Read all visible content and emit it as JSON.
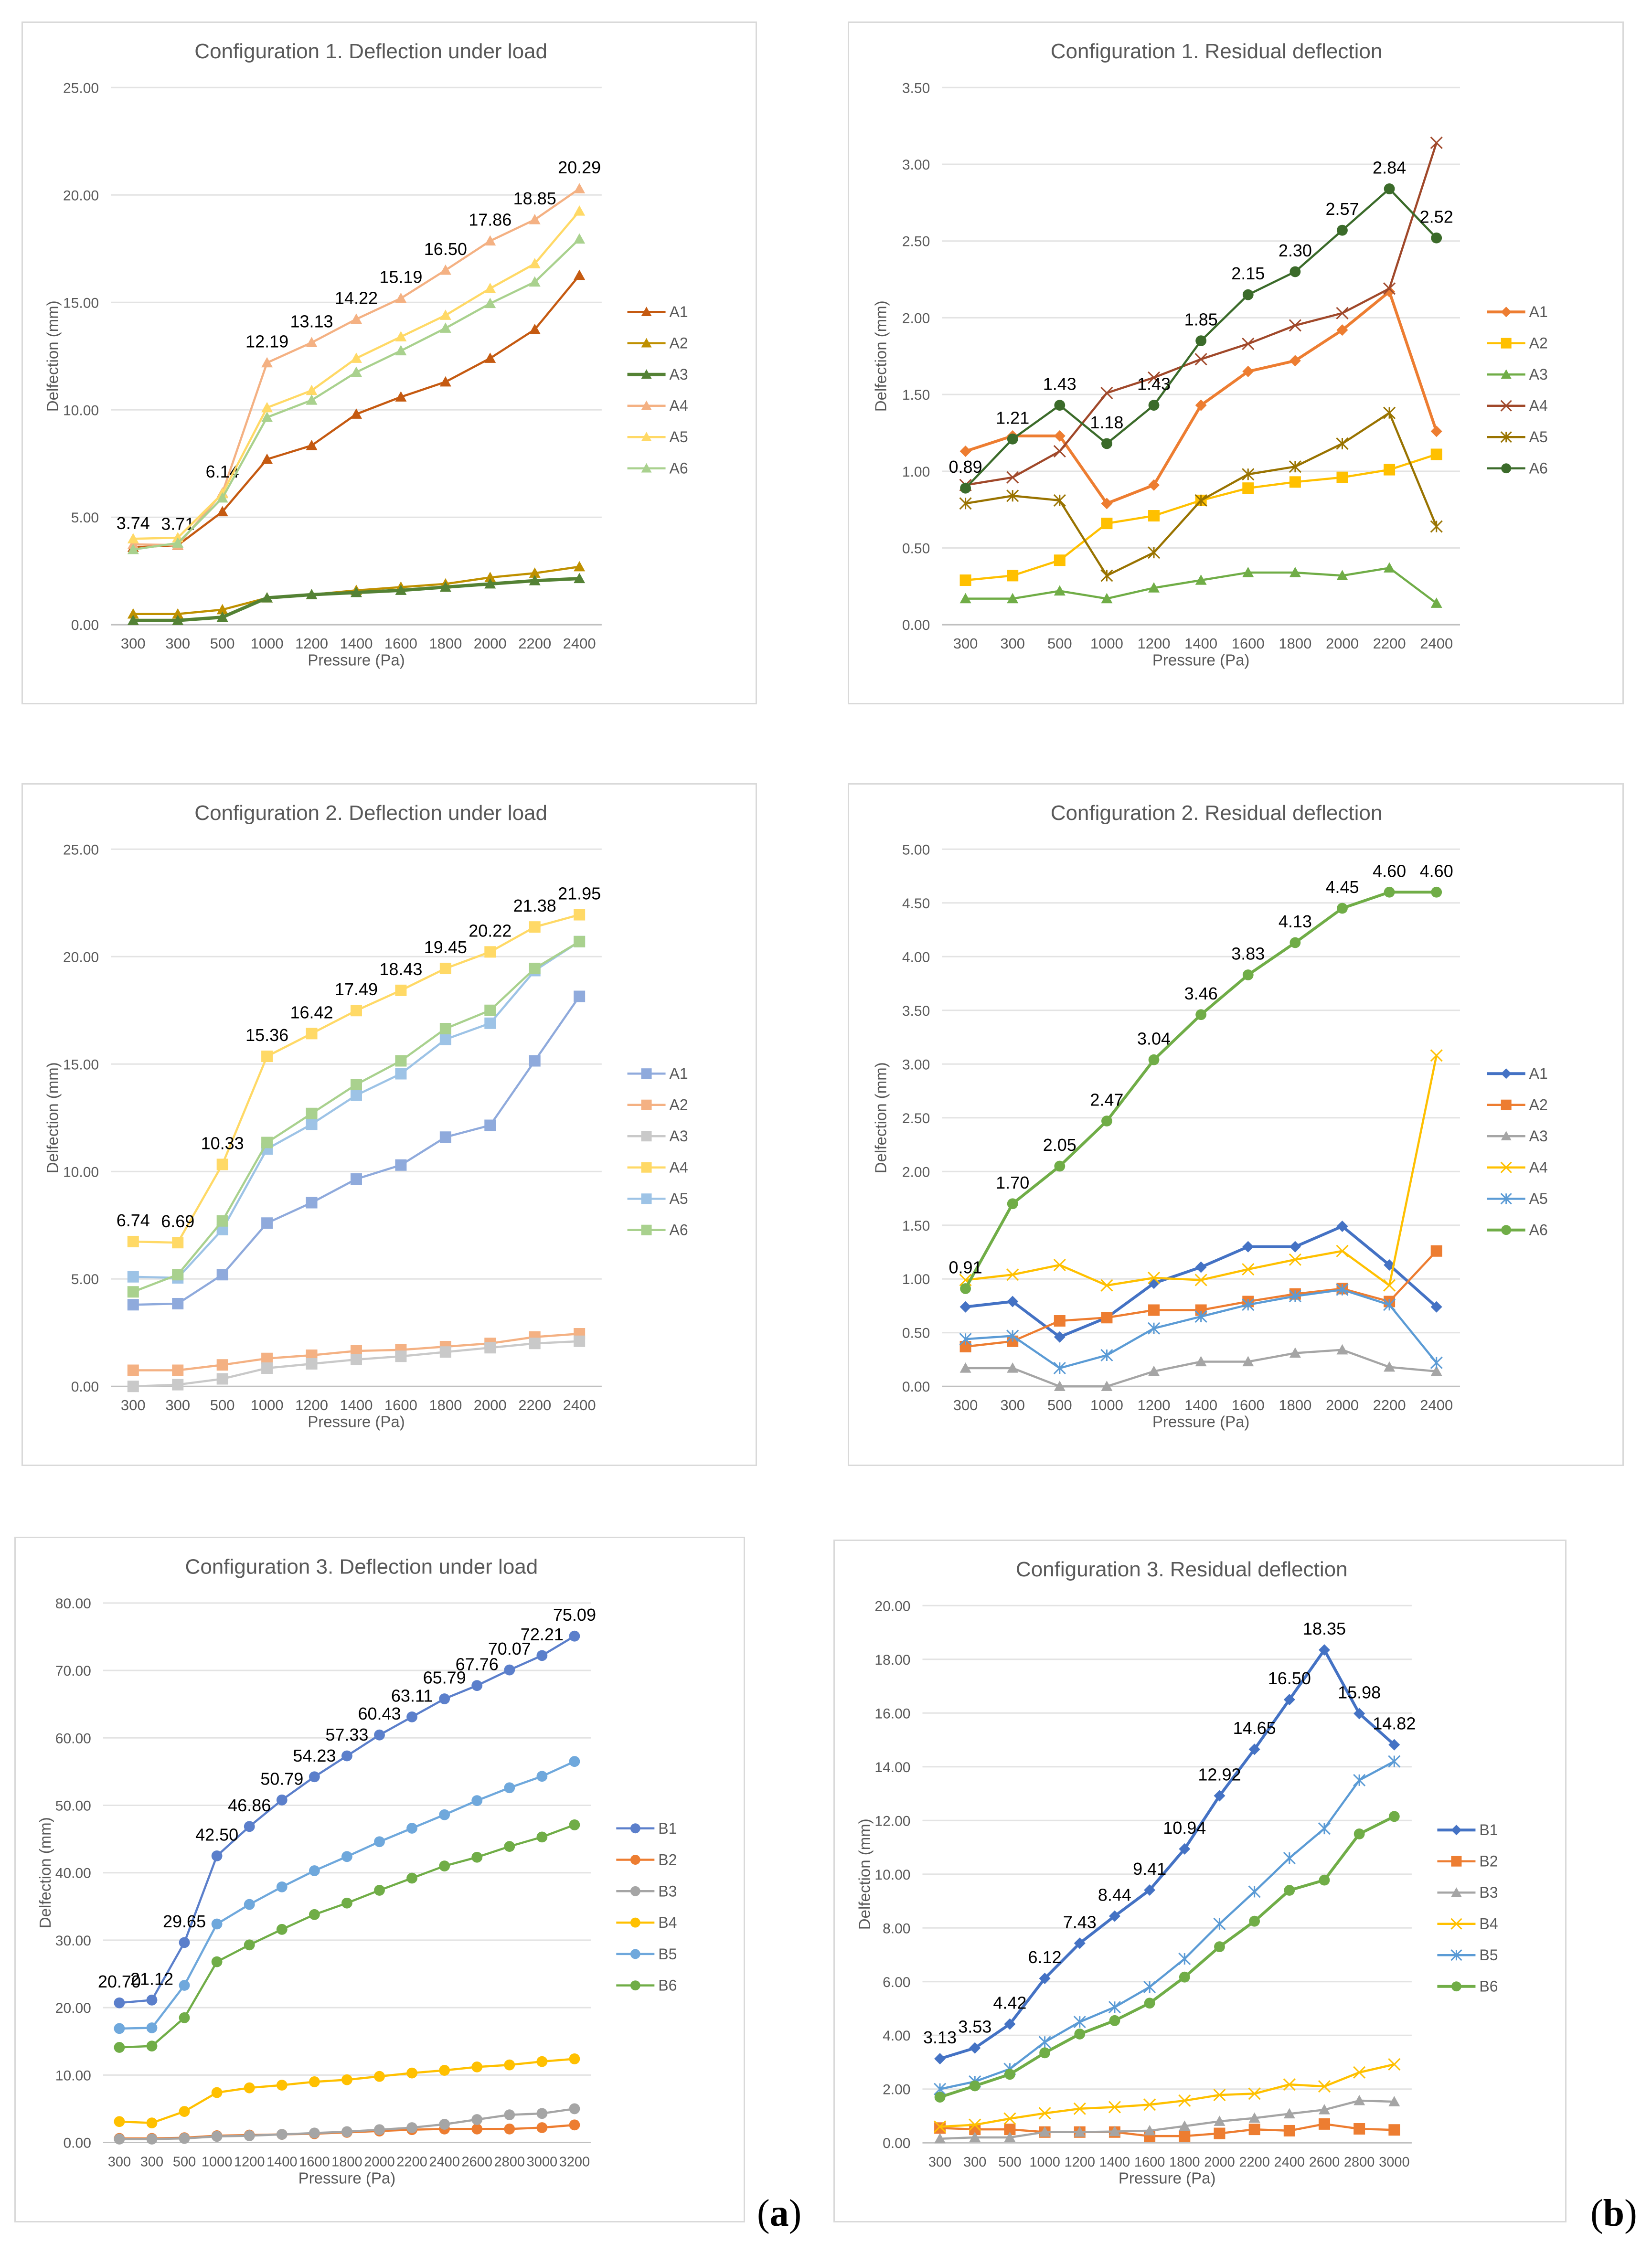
{
  "panel_labels": {
    "a": "a",
    "b": "b"
  },
  "chart_data": [
    {
      "type": "line",
      "title": "Configuration 1. Deflection under load",
      "xlabel": "Pressure (Pa)",
      "ylabel": "Delfection (mm)",
      "ylim": [
        0,
        25
      ],
      "ystep": 5,
      "categories": [
        "300",
        "300",
        "500",
        "1000",
        "1200",
        "1400",
        "1600",
        "1800",
        "2000",
        "2200",
        "2400"
      ],
      "series": [
        {
          "name": "A1",
          "color": "#C55A11",
          "marker": "triangle",
          "values": [
            3.6,
            3.7,
            5.26,
            7.7,
            8.34,
            9.8,
            10.6,
            11.3,
            12.4,
            13.74,
            16.26
          ]
        },
        {
          "name": "A2",
          "color": "#BF9000",
          "marker": "triangle",
          "values": [
            0.5,
            0.5,
            0.7,
            1.25,
            1.4,
            1.6,
            1.75,
            1.9,
            2.2,
            2.4,
            2.7
          ]
        },
        {
          "name": "A3",
          "color": "#548235",
          "marker": "triangle",
          "width": 7,
          "values": [
            0.2,
            0.2,
            0.35,
            1.25,
            1.4,
            1.5,
            1.6,
            1.75,
            1.9,
            2.05,
            2.15
          ]
        },
        {
          "name": "A4",
          "color": "#F4B183",
          "marker": "triangle",
          "labeled": true,
          "values": [
            3.74,
            3.71,
            6.14,
            12.19,
            13.13,
            14.22,
            15.19,
            16.5,
            17.86,
            18.85,
            20.29
          ]
        },
        {
          "name": "A5",
          "color": "#FFD966",
          "marker": "triangle",
          "values": [
            4.0,
            4.05,
            6.1,
            10.1,
            10.9,
            12.4,
            13.4,
            14.4,
            15.65,
            16.8,
            19.25
          ]
        },
        {
          "name": "A6",
          "color": "#A9D18E",
          "marker": "triangle",
          "values": [
            3.5,
            3.8,
            5.9,
            9.65,
            10.45,
            11.75,
            12.75,
            13.8,
            14.95,
            15.95,
            17.95
          ]
        }
      ]
    },
    {
      "type": "line",
      "title": "Configuration 1. Residual deflection",
      "xlabel": "Pressure (Pa)",
      "ylabel": "Delfection (mm)",
      "ylim": [
        0,
        3.5
      ],
      "ystep": 0.5,
      "categories": [
        "300",
        "300",
        "500",
        "1000",
        "1200",
        "1400",
        "1600",
        "1800",
        "2000",
        "2200",
        "2400"
      ],
      "series": [
        {
          "name": "A1",
          "color": "#ED7D31",
          "marker": "diamond",
          "width": 6,
          "values": [
            1.13,
            1.23,
            1.23,
            0.79,
            0.91,
            1.43,
            1.65,
            1.72,
            1.92,
            2.17,
            1.26
          ]
        },
        {
          "name": "A2",
          "color": "#FFC000",
          "marker": "square",
          "values": [
            0.29,
            0.32,
            0.42,
            0.66,
            0.71,
            0.81,
            0.89,
            0.93,
            0.96,
            1.01,
            1.11
          ]
        },
        {
          "name": "A3",
          "color": "#70AD47",
          "marker": "triangle",
          "values": [
            0.17,
            0.17,
            0.22,
            0.17,
            0.24,
            0.29,
            0.34,
            0.34,
            0.32,
            0.37,
            0.14
          ]
        },
        {
          "name": "A4",
          "color": "#A0482A",
          "marker": "x",
          "values": [
            0.91,
            0.96,
            1.13,
            1.51,
            1.61,
            1.73,
            1.83,
            1.95,
            2.03,
            2.19,
            3.14
          ]
        },
        {
          "name": "A5",
          "color": "#997300",
          "marker": "star",
          "values": [
            0.79,
            0.84,
            0.81,
            0.32,
            0.47,
            0.81,
            0.98,
            1.03,
            1.18,
            1.38,
            0.64
          ]
        },
        {
          "name": "A6",
          "color": "#3B6B2A",
          "marker": "circle",
          "labeled": true,
          "values": [
            0.89,
            1.21,
            1.43,
            1.18,
            1.43,
            1.85,
            2.15,
            2.3,
            2.57,
            2.84,
            2.52
          ]
        }
      ]
    },
    {
      "type": "line",
      "title": "Configuration 2. Deflection under load",
      "xlabel": "Pressure (Pa)",
      "ylabel": "Delfection (mm)",
      "ylim": [
        0,
        25
      ],
      "ystep": 5,
      "categories": [
        "300",
        "300",
        "500",
        "1000",
        "1200",
        "1400",
        "1600",
        "1800",
        "2000",
        "2200",
        "2400"
      ],
      "series": [
        {
          "name": "A1",
          "color": "#8FAADC",
          "marker": "square",
          "values": [
            3.8,
            3.85,
            5.2,
            7.6,
            8.55,
            9.65,
            10.3,
            11.6,
            12.15,
            15.15,
            18.15
          ]
        },
        {
          "name": "A2",
          "color": "#F4B183",
          "marker": "square",
          "values": [
            0.75,
            0.75,
            1.0,
            1.3,
            1.45,
            1.65,
            1.7,
            1.85,
            2.0,
            2.3,
            2.45
          ]
        },
        {
          "name": "A3",
          "color": "#C9C9C9",
          "marker": "square",
          "values": [
            0.0,
            0.08,
            0.35,
            0.85,
            1.05,
            1.25,
            1.4,
            1.6,
            1.8,
            2.0,
            2.1
          ]
        },
        {
          "name": "A4",
          "color": "#FFD966",
          "marker": "square",
          "labeled": true,
          "values": [
            6.74,
            6.69,
            10.33,
            15.36,
            16.42,
            17.49,
            18.43,
            19.45,
            20.22,
            21.38,
            21.95
          ]
        },
        {
          "name": "A5",
          "color": "#9DC3E6",
          "marker": "square",
          "values": [
            5.1,
            5.05,
            7.3,
            11.05,
            12.2,
            13.55,
            14.55,
            16.15,
            16.9,
            19.35,
            20.7
          ]
        },
        {
          "name": "A6",
          "color": "#A9D18E",
          "marker": "square",
          "values": [
            4.4,
            5.2,
            7.7,
            11.35,
            12.7,
            14.05,
            15.15,
            16.65,
            17.5,
            19.45,
            20.7
          ]
        }
      ]
    },
    {
      "type": "line",
      "title": "Configuration 2. Residual deflection",
      "xlabel": "Pressure (Pa)",
      "ylabel": "Delfection (mm)",
      "ylim": [
        0,
        5
      ],
      "ystep": 0.5,
      "categories": [
        "300",
        "300",
        "500",
        "1000",
        "1200",
        "1400",
        "1600",
        "1800",
        "2000",
        "2200",
        "2400"
      ],
      "series": [
        {
          "name": "A1",
          "color": "#4472C4",
          "marker": "diamond",
          "width": 6,
          "values": [
            0.74,
            0.79,
            0.46,
            0.64,
            0.96,
            1.11,
            1.3,
            1.3,
            1.49,
            1.13,
            0.74
          ]
        },
        {
          "name": "A2",
          "color": "#ED7D31",
          "marker": "square",
          "values": [
            0.37,
            0.42,
            0.61,
            0.64,
            0.71,
            0.71,
            0.79,
            0.86,
            0.91,
            0.79,
            1.26
          ]
        },
        {
          "name": "A3",
          "color": "#A5A5A5",
          "marker": "triangle",
          "values": [
            0.17,
            0.17,
            0.0,
            0.0,
            0.14,
            0.23,
            0.23,
            0.31,
            0.34,
            0.18,
            0.14
          ]
        },
        {
          "name": "A4",
          "color": "#FFC000",
          "marker": "x",
          "values": [
            0.99,
            1.04,
            1.13,
            0.94,
            1.01,
            0.99,
            1.09,
            1.18,
            1.26,
            0.94,
            3.08
          ]
        },
        {
          "name": "A5",
          "color": "#5B9BD5",
          "marker": "star",
          "values": [
            0.44,
            0.47,
            0.17,
            0.29,
            0.54,
            0.65,
            0.76,
            0.84,
            0.9,
            0.76,
            0.22
          ]
        },
        {
          "name": "A6",
          "color": "#70AD47",
          "marker": "circle",
          "width": 6,
          "labeled": true,
          "values": [
            0.91,
            1.7,
            2.05,
            2.47,
            3.04,
            3.46,
            3.83,
            4.13,
            4.45,
            4.6,
            4.6
          ]
        }
      ]
    },
    {
      "type": "line",
      "title": "Configuration 3. Deflection under load",
      "xlabel": "Pressure (Pa)",
      "ylabel": "Delfection (mm)",
      "ylim": [
        0,
        80
      ],
      "ystep": 10,
      "categories": [
        "300",
        "300",
        "500",
        "1000",
        "1200",
        "1400",
        "1600",
        "1800",
        "2000",
        "2200",
        "2400",
        "2600",
        "2800",
        "3000",
        "3200"
      ],
      "series": [
        {
          "name": "B1",
          "color": "#5B7FCB",
          "marker": "circle",
          "labeled": true,
          "values": [
            20.7,
            21.12,
            29.65,
            42.5,
            46.86,
            50.79,
            54.23,
            57.33,
            60.43,
            63.11,
            65.79,
            67.76,
            70.07,
            72.21,
            75.09
          ]
        },
        {
          "name": "B2",
          "color": "#ED7D31",
          "marker": "circle",
          "values": [
            0.6,
            0.6,
            0.7,
            1.0,
            1.1,
            1.2,
            1.3,
            1.5,
            1.7,
            1.9,
            2.0,
            2.0,
            2.0,
            2.2,
            2.6
          ]
        },
        {
          "name": "B3",
          "color": "#A5A5A5",
          "marker": "circle",
          "values": [
            0.5,
            0.5,
            0.6,
            0.9,
            1.0,
            1.2,
            1.4,
            1.6,
            1.9,
            2.2,
            2.7,
            3.4,
            4.1,
            4.3,
            5.0
          ]
        },
        {
          "name": "B4",
          "color": "#FFC000",
          "marker": "circle",
          "values": [
            3.1,
            2.9,
            4.6,
            7.4,
            8.1,
            8.5,
            9.0,
            9.3,
            9.8,
            10.3,
            10.7,
            11.2,
            11.5,
            12.0,
            12.4
          ]
        },
        {
          "name": "B5",
          "color": "#6FA8DC",
          "marker": "circle",
          "values": [
            16.9,
            17.0,
            23.3,
            32.4,
            35.3,
            37.9,
            40.3,
            42.4,
            44.6,
            46.6,
            48.6,
            50.7,
            52.6,
            54.3,
            56.5
          ]
        },
        {
          "name": "B6",
          "color": "#70AD47",
          "marker": "circle",
          "values": [
            14.1,
            14.3,
            18.5,
            26.8,
            29.3,
            31.6,
            33.8,
            35.5,
            37.4,
            39.2,
            41.0,
            42.3,
            43.9,
            45.3,
            47.1
          ]
        }
      ]
    },
    {
      "type": "line",
      "title": "Configuration 3. Residual deflection",
      "xlabel": "Pressure (Pa)",
      "ylabel": "Delfection (mm)",
      "ylim": [
        0,
        20
      ],
      "ystep": 2,
      "categories": [
        "300",
        "300",
        "500",
        "1000",
        "1200",
        "1400",
        "1600",
        "1800",
        "2000",
        "2200",
        "2400",
        "2600",
        "2800",
        "3000"
      ],
      "series": [
        {
          "name": "B1",
          "color": "#4472C4",
          "marker": "diamond",
          "width": 6,
          "labeled": true,
          "values": [
            3.13,
            3.53,
            4.42,
            6.12,
            7.43,
            8.44,
            9.41,
            10.94,
            12.92,
            14.65,
            16.5,
            18.35,
            15.98,
            14.82
          ]
        },
        {
          "name": "B2",
          "color": "#ED7D31",
          "marker": "square",
          "values": [
            0.55,
            0.5,
            0.5,
            0.4,
            0.4,
            0.4,
            0.25,
            0.25,
            0.35,
            0.5,
            0.45,
            0.7,
            0.52,
            0.48
          ]
        },
        {
          "name": "B3",
          "color": "#A5A5A5",
          "marker": "triangle",
          "values": [
            0.15,
            0.2,
            0.2,
            0.4,
            0.4,
            0.42,
            0.45,
            0.62,
            0.8,
            0.92,
            1.08,
            1.23,
            1.57,
            1.53
          ]
        },
        {
          "name": "B4",
          "color": "#FFC000",
          "marker": "x",
          "values": [
            0.6,
            0.67,
            0.9,
            1.1,
            1.27,
            1.33,
            1.42,
            1.57,
            1.78,
            1.83,
            2.17,
            2.1,
            2.62,
            2.92
          ]
        },
        {
          "name": "B5",
          "color": "#5B9BD5",
          "marker": "star",
          "values": [
            2.0,
            2.28,
            2.75,
            3.75,
            4.5,
            5.05,
            5.8,
            6.85,
            8.15,
            9.35,
            10.6,
            11.7,
            13.5,
            14.2
          ]
        },
        {
          "name": "B6",
          "color": "#70AD47",
          "marker": "circle",
          "width": 6,
          "values": [
            1.7,
            2.12,
            2.55,
            3.35,
            4.05,
            4.55,
            5.2,
            6.17,
            7.3,
            8.25,
            9.4,
            9.78,
            11.5,
            12.15
          ]
        }
      ]
    }
  ]
}
